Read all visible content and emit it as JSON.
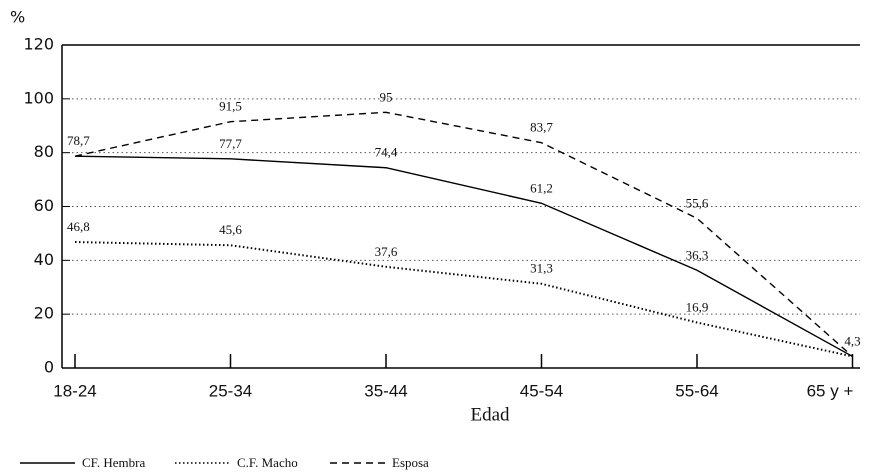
{
  "chart_data": {
    "type": "line",
    "y_label": "%",
    "x_label": "Edad",
    "categories": [
      "18-24",
      "25-34",
      "35-44",
      "45-54",
      "55-64",
      "65 y +"
    ],
    "series": [
      {
        "name": "CF. Hembra",
        "color": "#000000",
        "dash": "solid",
        "values": [
          78.7,
          77.7,
          74.4,
          61.2,
          36.3,
          4.3
        ],
        "value_labels": [
          "78,7",
          "77,7",
          "74,4",
          "61,2",
          "36,3",
          "4,3"
        ]
      },
      {
        "name": "C.F. Macho",
        "color": "#000000",
        "dash": "dotted",
        "values": [
          46.8,
          45.6,
          37.6,
          31.3,
          16.9,
          4.3
        ],
        "value_labels": [
          "46,8",
          "45,6",
          "37,6",
          "31,3",
          "16,9",
          null
        ]
      },
      {
        "name": "Esposa",
        "color": "#000000",
        "dash": "dashed",
        "values": [
          78.7,
          91.5,
          95,
          83.7,
          55.6,
          4.3
        ],
        "value_labels": [
          null,
          "91,5",
          "95",
          "83,7",
          "55,6",
          null
        ]
      }
    ],
    "ylim": [
      0,
      120
    ],
    "yticks": [
      0,
      20,
      40,
      60,
      80,
      100,
      120
    ],
    "grid": true,
    "legend": "bottom"
  }
}
